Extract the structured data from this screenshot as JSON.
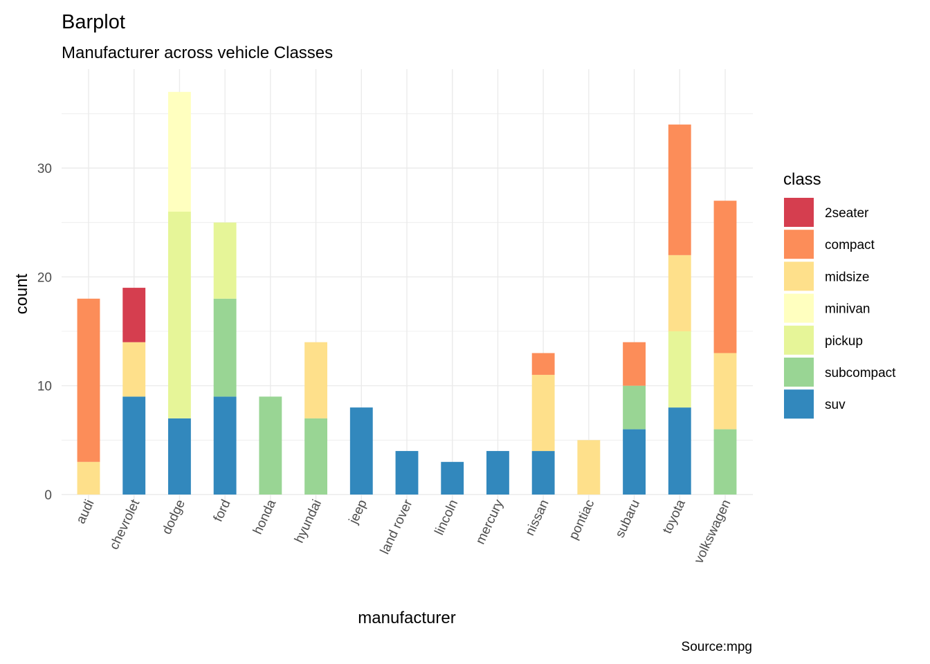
{
  "chart_data": {
    "type": "bar",
    "stacked": true,
    "title": "Barplot",
    "subtitle": "Manufacturer across vehicle Classes",
    "caption": "Source:mpg",
    "xlabel": "manufacturer",
    "ylabel": "count",
    "ylim": [
      0,
      37
    ],
    "yticks": [
      0,
      10,
      20,
      30
    ],
    "grid": true,
    "legend": {
      "title": "class",
      "position": "right"
    },
    "categories": [
      "audi",
      "chevrolet",
      "dodge",
      "ford",
      "honda",
      "hyundai",
      "jeep",
      "land rover",
      "lincoln",
      "mercury",
      "nissan",
      "pontiac",
      "subaru",
      "toyota",
      "volkswagen"
    ],
    "series": [
      {
        "name": "2seater",
        "color": "#D53E4F",
        "values": [
          0,
          5,
          0,
          0,
          0,
          0,
          0,
          0,
          0,
          0,
          0,
          0,
          0,
          0,
          0
        ]
      },
      {
        "name": "compact",
        "color": "#FC8D59",
        "values": [
          15,
          0,
          0,
          0,
          0,
          0,
          0,
          0,
          0,
          0,
          2,
          0,
          4,
          12,
          14
        ]
      },
      {
        "name": "midsize",
        "color": "#FEE08B",
        "values": [
          3,
          5,
          0,
          0,
          0,
          7,
          0,
          0,
          0,
          0,
          7,
          5,
          0,
          7,
          7
        ]
      },
      {
        "name": "minivan",
        "color": "#FFFFBF",
        "values": [
          0,
          0,
          11,
          0,
          0,
          0,
          0,
          0,
          0,
          0,
          0,
          0,
          0,
          0,
          0
        ]
      },
      {
        "name": "pickup",
        "color": "#E6F598",
        "values": [
          0,
          0,
          19,
          7,
          0,
          0,
          0,
          0,
          0,
          0,
          0,
          0,
          0,
          7,
          0
        ]
      },
      {
        "name": "subcompact",
        "color": "#99D594",
        "values": [
          0,
          0,
          0,
          9,
          9,
          7,
          0,
          0,
          0,
          0,
          0,
          0,
          4,
          0,
          6
        ]
      },
      {
        "name": "suv",
        "color": "#3288BD",
        "values": [
          0,
          9,
          7,
          9,
          0,
          0,
          8,
          4,
          3,
          4,
          4,
          0,
          6,
          8,
          0
        ]
      }
    ]
  }
}
